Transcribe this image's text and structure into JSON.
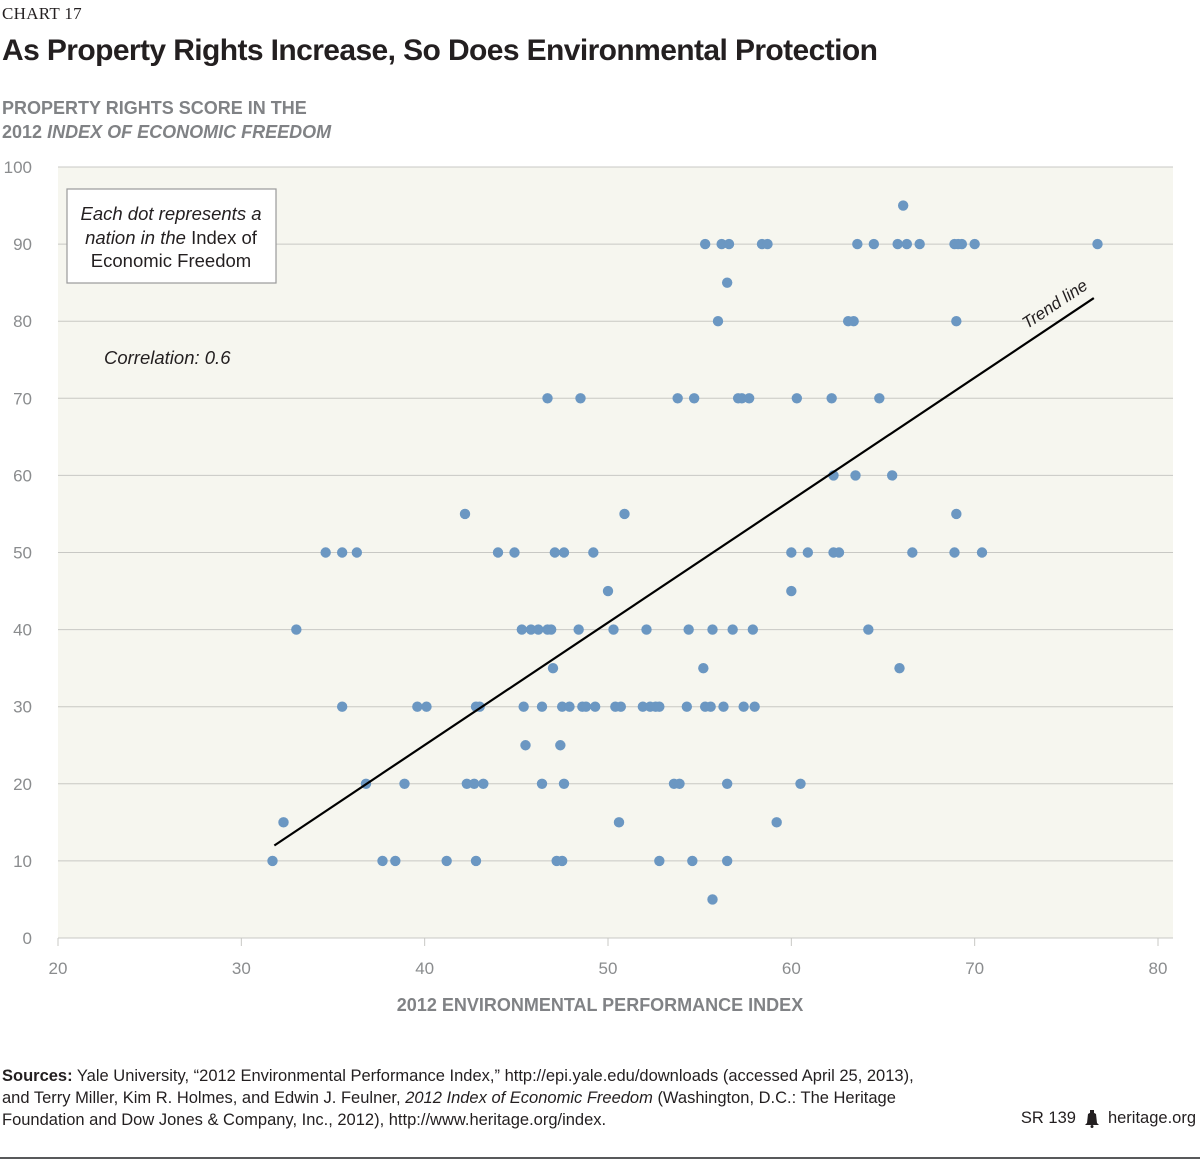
{
  "header": {
    "chart_number": "CHART 17",
    "title": "As Property Rights Increase, So Does Environmental Protection"
  },
  "colors": {
    "plot_background": "#f6f6ef",
    "dot": "#6b97c2",
    "grid": "#c8c8c4",
    "axis_text": "#8a8c8e",
    "trend_line": "#000000"
  },
  "chart_data": {
    "type": "scatter",
    "title": "As Property Rights Increase, So Does Environmental Protection",
    "ylabel_line1": "PROPERTY RIGHTS SCORE IN THE",
    "ylabel_line2_prefix": "2012",
    "ylabel_line2_italic": "INDEX OF ECONOMIC FREEDOM",
    "xlabel": "2012 ENVIRONMENTAL PERFORMANCE INDEX",
    "xlim": [
      20,
      80
    ],
    "ylim": [
      0,
      100
    ],
    "xticks": [
      20,
      30,
      40,
      50,
      60,
      70,
      80
    ],
    "yticks": [
      0,
      10,
      20,
      30,
      40,
      50,
      60,
      70,
      80,
      90,
      100
    ],
    "grid": "horizontal",
    "note_line1": "Each dot represents a",
    "note_line2_prefix": "nation in the",
    "note_line2_suffix": "Index of",
    "note_line3": "Economic Freedom",
    "correlation_label": "Correlation: 0.6",
    "trend_line": {
      "label": "Trend line",
      "start": [
        31.8,
        12
      ],
      "end": [
        76.5,
        83
      ]
    },
    "series": [
      {
        "points": [
          [
            66.1,
            95
          ],
          [
            55.3,
            90
          ],
          [
            56.2,
            90
          ],
          [
            56.6,
            90
          ],
          [
            58.4,
            90
          ],
          [
            58.7,
            90
          ],
          [
            63.6,
            90
          ],
          [
            64.5,
            90
          ],
          [
            65.8,
            90
          ],
          [
            66.3,
            90
          ],
          [
            67.0,
            90
          ],
          [
            68.9,
            90
          ],
          [
            69.1,
            90
          ],
          [
            69.3,
            90
          ],
          [
            70.0,
            90
          ],
          [
            76.7,
            90
          ],
          [
            56.5,
            85
          ],
          [
            56.0,
            80
          ],
          [
            63.1,
            80
          ],
          [
            63.4,
            80
          ],
          [
            69.0,
            80
          ],
          [
            46.7,
            70
          ],
          [
            48.5,
            70
          ],
          [
            53.8,
            70
          ],
          [
            54.7,
            70
          ],
          [
            57.1,
            70
          ],
          [
            57.3,
            70
          ],
          [
            57.7,
            70
          ],
          [
            60.3,
            70
          ],
          [
            62.2,
            70
          ],
          [
            64.8,
            70
          ],
          [
            62.3,
            60
          ],
          [
            63.5,
            60
          ],
          [
            65.5,
            60
          ],
          [
            42.2,
            55
          ],
          [
            50.9,
            55
          ],
          [
            69.0,
            55
          ],
          [
            34.6,
            50
          ],
          [
            35.5,
            50
          ],
          [
            36.3,
            50
          ],
          [
            44.0,
            50
          ],
          [
            44.9,
            50
          ],
          [
            47.1,
            50
          ],
          [
            47.6,
            50
          ],
          [
            49.2,
            50
          ],
          [
            60.0,
            50
          ],
          [
            60.9,
            50
          ],
          [
            62.3,
            50
          ],
          [
            62.6,
            50
          ],
          [
            66.6,
            50
          ],
          [
            68.9,
            50
          ],
          [
            70.4,
            50
          ],
          [
            50.0,
            45
          ],
          [
            60.0,
            45
          ],
          [
            33.0,
            40
          ],
          [
            45.3,
            40
          ],
          [
            45.8,
            40
          ],
          [
            46.2,
            40
          ],
          [
            46.7,
            40
          ],
          [
            46.9,
            40
          ],
          [
            48.4,
            40
          ],
          [
            50.3,
            40
          ],
          [
            52.1,
            40
          ],
          [
            54.4,
            40
          ],
          [
            55.7,
            40
          ],
          [
            56.8,
            40
          ],
          [
            57.9,
            40
          ],
          [
            64.2,
            40
          ],
          [
            47.0,
            35
          ],
          [
            55.2,
            35
          ],
          [
            65.9,
            35
          ],
          [
            35.5,
            30
          ],
          [
            39.6,
            30
          ],
          [
            40.1,
            30
          ],
          [
            42.8,
            30
          ],
          [
            43.0,
            30
          ],
          [
            45.4,
            30
          ],
          [
            46.4,
            30
          ],
          [
            47.5,
            30
          ],
          [
            47.9,
            30
          ],
          [
            48.6,
            30
          ],
          [
            48.8,
            30
          ],
          [
            49.3,
            30
          ],
          [
            50.4,
            30
          ],
          [
            50.7,
            30
          ],
          [
            51.9,
            30
          ],
          [
            52.3,
            30
          ],
          [
            52.6,
            30
          ],
          [
            52.8,
            30
          ],
          [
            54.3,
            30
          ],
          [
            55.3,
            30
          ],
          [
            55.6,
            30
          ],
          [
            56.3,
            30
          ],
          [
            57.4,
            30
          ],
          [
            58.0,
            30
          ],
          [
            45.5,
            25
          ],
          [
            47.4,
            25
          ],
          [
            36.8,
            20
          ],
          [
            38.9,
            20
          ],
          [
            42.3,
            20
          ],
          [
            42.7,
            20
          ],
          [
            43.2,
            20
          ],
          [
            46.4,
            20
          ],
          [
            47.6,
            20
          ],
          [
            53.6,
            20
          ],
          [
            53.9,
            20
          ],
          [
            56.5,
            20
          ],
          [
            60.5,
            20
          ],
          [
            32.3,
            15
          ],
          [
            50.6,
            15
          ],
          [
            59.2,
            15
          ],
          [
            31.7,
            10
          ],
          [
            37.7,
            10
          ],
          [
            38.4,
            10
          ],
          [
            41.2,
            10
          ],
          [
            42.8,
            10
          ],
          [
            47.2,
            10
          ],
          [
            47.5,
            10
          ],
          [
            52.8,
            10
          ],
          [
            54.6,
            10
          ],
          [
            56.5,
            10
          ],
          [
            55.7,
            5
          ]
        ]
      }
    ]
  },
  "footer": {
    "sources_label": "Sources:",
    "sources_text_1": "Yale University, “2012 Environmental Performance Index,” http://epi.yale.edu/downloads (accessed April 25, 2013), and Terry Miller, Kim R. Holmes, and Edwin J. Feulner,",
    "sources_italic": "2012 Index of Economic Freedom",
    "sources_text_2": "(Washington, D.C.: The Heritage Foundation and Dow Jones & Company, Inc., 2012), http://www.heritage.org/index.",
    "report_id": "SR 139",
    "logo_icon": "liberty-bell-icon",
    "site": "heritage.org"
  }
}
